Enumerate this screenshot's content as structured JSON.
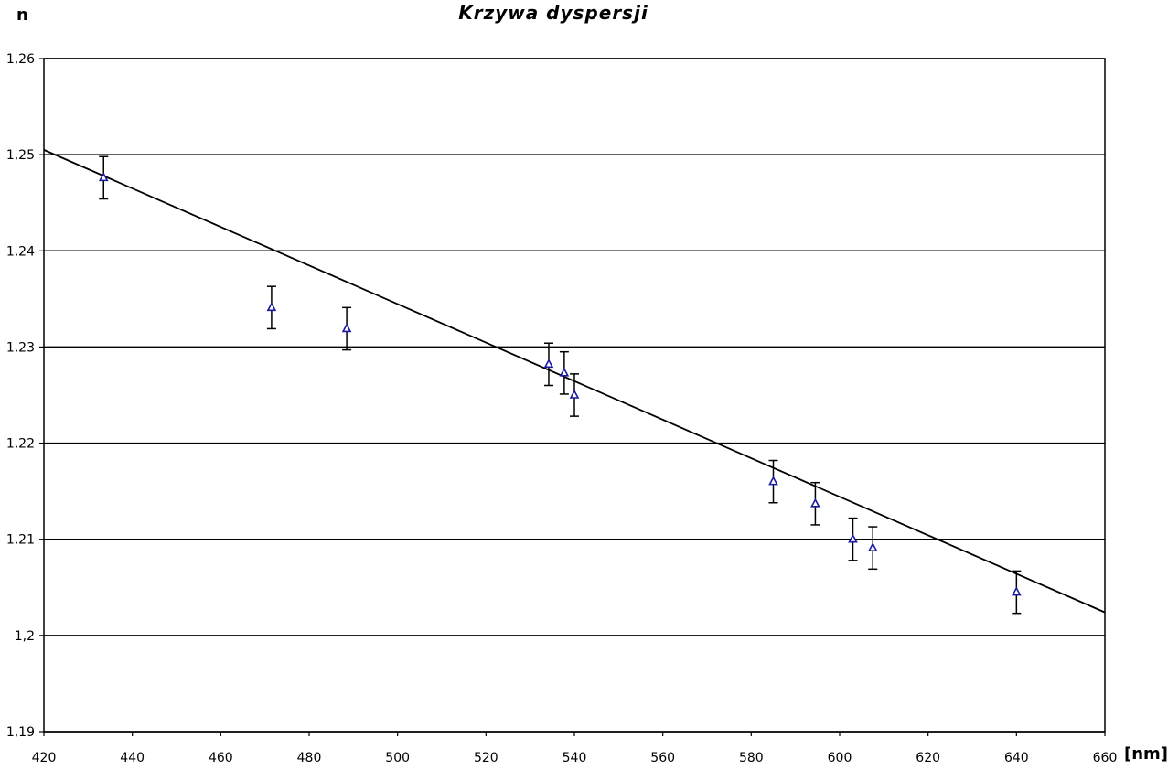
{
  "chart_data": {
    "type": "scatter",
    "title": "Krzywa dyspersji",
    "xlabel": "[nm]",
    "ylabel": "n",
    "xlim": [
      420,
      660
    ],
    "ylim": [
      1.19,
      1.26
    ],
    "x_ticks": [
      420,
      440,
      460,
      480,
      500,
      520,
      540,
      560,
      580,
      600,
      620,
      640,
      660
    ],
    "x_tick_labels": [
      "420",
      "440",
      "460",
      "480",
      "500",
      "520",
      "540",
      "560",
      "580",
      "600",
      "620",
      "640",
      "660"
    ],
    "y_ticks": [
      1.19,
      1.2,
      1.21,
      1.22,
      1.23,
      1.24,
      1.25,
      1.26
    ],
    "y_tick_labels": [
      "1,19",
      "1,2",
      "1,21",
      "1,22",
      "1,23",
      "1,24",
      "1,25",
      "1,26"
    ],
    "grid": "horizontal",
    "series": [
      {
        "marker": "triangle",
        "color": "#1a1aa0",
        "points": [
          {
            "x": 433.5,
            "y": 1.2476,
            "err": 0.0022
          },
          {
            "x": 471.5,
            "y": 1.2341,
            "err": 0.0022
          },
          {
            "x": 488.5,
            "y": 1.2319,
            "err": 0.0022
          },
          {
            "x": 534.2,
            "y": 1.2282,
            "err": 0.0022
          },
          {
            "x": 537.7,
            "y": 1.2273,
            "err": 0.0022
          },
          {
            "x": 540.0,
            "y": 1.225,
            "err": 0.0022
          },
          {
            "x": 585.0,
            "y": 1.216,
            "err": 0.0022
          },
          {
            "x": 594.5,
            "y": 1.2137,
            "err": 0.0022
          },
          {
            "x": 603.0,
            "y": 1.21,
            "err": 0.0022
          },
          {
            "x": 607.5,
            "y": 1.2091,
            "err": 0.0022
          },
          {
            "x": 640.0,
            "y": 1.2045,
            "err": 0.0022
          }
        ]
      }
    ],
    "trendline": {
      "type": "linear",
      "color": "#000000",
      "x": [
        420,
        660
      ],
      "y": [
        1.2505,
        1.2024
      ]
    }
  }
}
